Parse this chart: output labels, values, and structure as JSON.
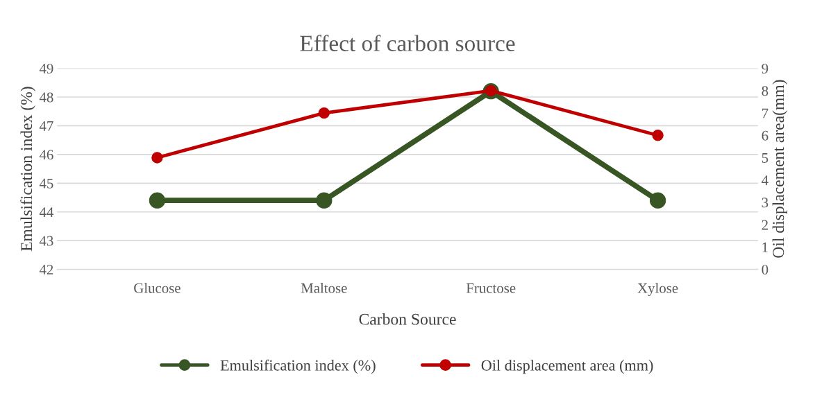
{
  "chart_data": {
    "type": "line",
    "title": "Effect of carbon source",
    "xlabel": "Carbon Source",
    "ylabel": "Emulsification index (%)",
    "y2label": "Oil displacement area(mm)",
    "categories": [
      "Glucose",
      "Maltose",
      "Fructose",
      "Xylose"
    ],
    "series": [
      {
        "name": "Emulsification index (%)",
        "color": "#375623",
        "values": [
          44.4,
          44.4,
          48.2,
          44.4
        ]
      },
      {
        "name": "Oil displacement area (mm)",
        "color": "#c00000",
        "values": [
          5,
          7,
          8,
          6
        ],
        "axis": "y2"
      }
    ],
    "ylim": [
      42,
      49
    ],
    "yticks": [
      42,
      43,
      44,
      45,
      46,
      47,
      48,
      49
    ],
    "y2lim": [
      0,
      9
    ],
    "y2ticks": [
      0,
      1,
      2,
      3,
      4,
      5,
      6,
      7,
      8,
      9
    ],
    "grid": "y",
    "legend": "bottom",
    "marker": "circle",
    "line_style": "solid"
  }
}
